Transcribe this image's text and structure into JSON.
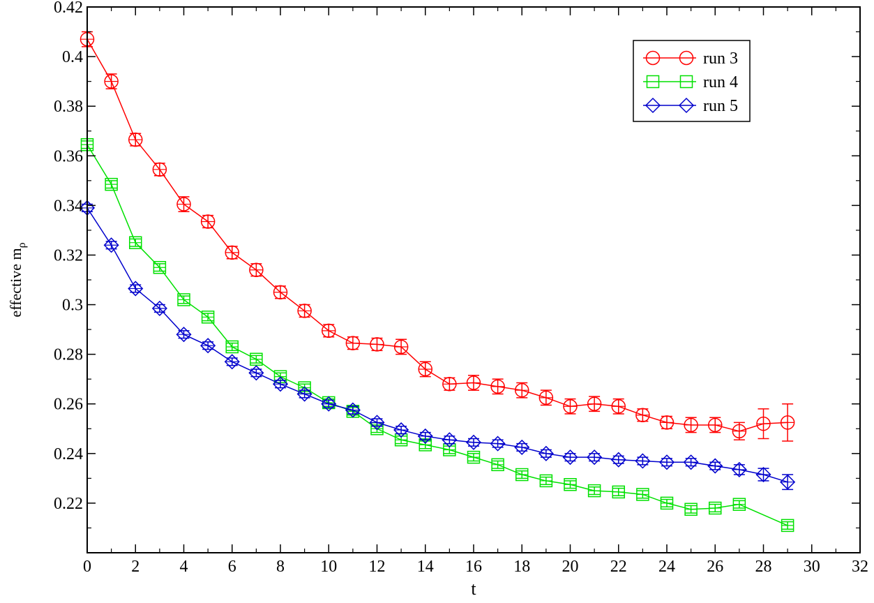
{
  "chart_data": {
    "type": "line",
    "title": "",
    "xlabel": "t",
    "ylabel_main": "effective m",
    "ylabel_sub": "ρ",
    "xlim": [
      0,
      32
    ],
    "ylim": [
      0.2,
      0.42
    ],
    "grid": false,
    "legend_position": "top-right",
    "x_ticks": [
      0,
      2,
      4,
      6,
      8,
      10,
      12,
      14,
      16,
      18,
      20,
      22,
      24,
      26,
      28,
      30,
      32
    ],
    "x_tick_labels": [
      "0",
      "2",
      "4",
      "6",
      "8",
      "10",
      "12",
      "14",
      "16",
      "18",
      "20",
      "22",
      "24",
      "26",
      "28",
      "30",
      "32"
    ],
    "y_ticks": [
      0.22,
      0.24,
      0.26,
      0.28,
      0.3,
      0.32,
      0.34,
      0.36,
      0.38,
      0.4,
      0.42
    ],
    "y_tick_labels": [
      "0.22",
      "0.24",
      "0.26",
      "0.28",
      "0.3",
      "0.32",
      "0.34",
      "0.36",
      "0.38",
      "0.4",
      "0.42"
    ],
    "series": [
      {
        "name": "run 3",
        "color": "#ff0000",
        "marker": "circle",
        "x": [
          0,
          1,
          2,
          3,
          4,
          5,
          6,
          7,
          8,
          9,
          10,
          11,
          12,
          13,
          14,
          15,
          16,
          17,
          18,
          19,
          20,
          21,
          22,
          23,
          24,
          25,
          26,
          27,
          28,
          29
        ],
        "y": [
          0.407,
          0.39,
          0.3665,
          0.3545,
          0.3405,
          0.3335,
          0.321,
          0.314,
          0.305,
          0.2975,
          0.2895,
          0.2845,
          0.284,
          0.283,
          0.274,
          0.268,
          0.2685,
          0.267,
          0.2655,
          0.2625,
          0.259,
          0.26,
          0.259,
          0.2555,
          0.2525,
          0.2515,
          0.2515,
          0.249,
          0.252,
          0.2525
        ],
        "err": [
          0.003,
          0.003,
          0.0025,
          0.0025,
          0.003,
          0.0025,
          0.0025,
          0.0025,
          0.0025,
          0.0025,
          0.0025,
          0.0025,
          0.0025,
          0.003,
          0.003,
          0.0025,
          0.003,
          0.003,
          0.003,
          0.003,
          0.003,
          0.003,
          0.003,
          0.0025,
          0.0025,
          0.003,
          0.003,
          0.0035,
          0.006,
          0.0075
        ]
      },
      {
        "name": "run 4",
        "color": "#00e000",
        "marker": "square",
        "x": [
          0,
          1,
          2,
          3,
          4,
          5,
          6,
          7,
          8,
          9,
          10,
          11,
          12,
          13,
          14,
          15,
          16,
          17,
          18,
          19,
          20,
          21,
          22,
          23,
          24,
          25,
          26,
          27,
          29
        ],
        "y": [
          0.3645,
          0.3485,
          0.325,
          0.315,
          0.302,
          0.295,
          0.283,
          0.278,
          0.271,
          0.2665,
          0.2605,
          0.257,
          0.25,
          0.2455,
          0.2435,
          0.2415,
          0.2385,
          0.2355,
          0.2315,
          0.229,
          0.2275,
          0.225,
          0.2245,
          0.2235,
          0.22,
          0.2175,
          0.218,
          0.2195,
          0.211
        ]
      },
      {
        "name": "run 5",
        "color": "#0000cc",
        "marker": "diamond",
        "x": [
          0,
          1,
          2,
          3,
          4,
          5,
          6,
          7,
          8,
          9,
          10,
          11,
          12,
          13,
          14,
          15,
          16,
          17,
          18,
          19,
          20,
          21,
          22,
          23,
          24,
          25,
          26,
          27,
          28,
          29
        ],
        "y": [
          0.339,
          0.324,
          0.3065,
          0.2985,
          0.288,
          0.2835,
          0.277,
          0.2725,
          0.268,
          0.264,
          0.26,
          0.2575,
          0.2525,
          0.2495,
          0.247,
          0.2455,
          0.2445,
          0.244,
          0.2425,
          0.24,
          0.2385,
          0.2385,
          0.2375,
          0.237,
          0.2365,
          0.2365,
          0.235,
          0.2335,
          0.2315,
          0.2285
        ],
        "err": [
          0.0015,
          0.0015,
          0.0015,
          0.0015,
          0.0015,
          0.0015,
          0.0015,
          0.0015,
          0.0015,
          0.0015,
          0.0015,
          0.0015,
          0.0015,
          0.0015,
          0.0015,
          0.0015,
          0.0015,
          0.0015,
          0.0015,
          0.0015,
          0.0015,
          0.0015,
          0.0015,
          0.0015,
          0.0015,
          0.0015,
          0.0015,
          0.002,
          0.0025,
          0.003
        ]
      }
    ]
  }
}
